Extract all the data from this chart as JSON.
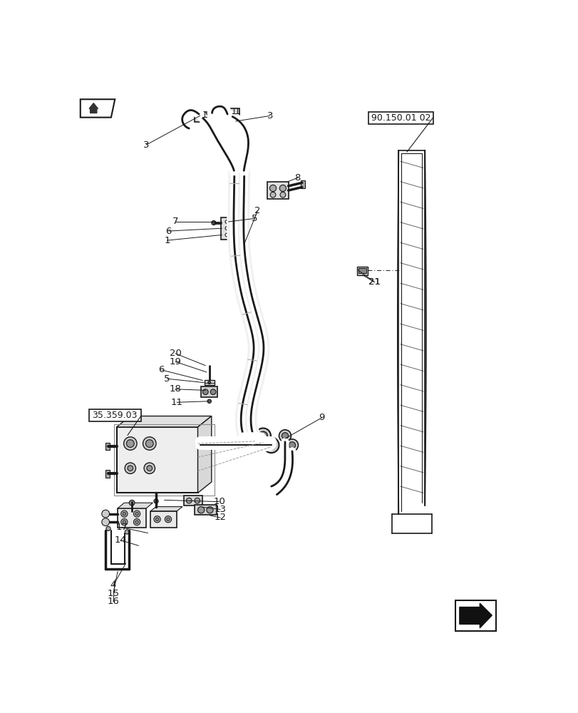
{
  "bg_color": "#ffffff",
  "lc": "#1a1a1a",
  "ref_box1": "90.150.01 02",
  "ref_box2": "35.359.03",
  "label_fs": 9.5
}
